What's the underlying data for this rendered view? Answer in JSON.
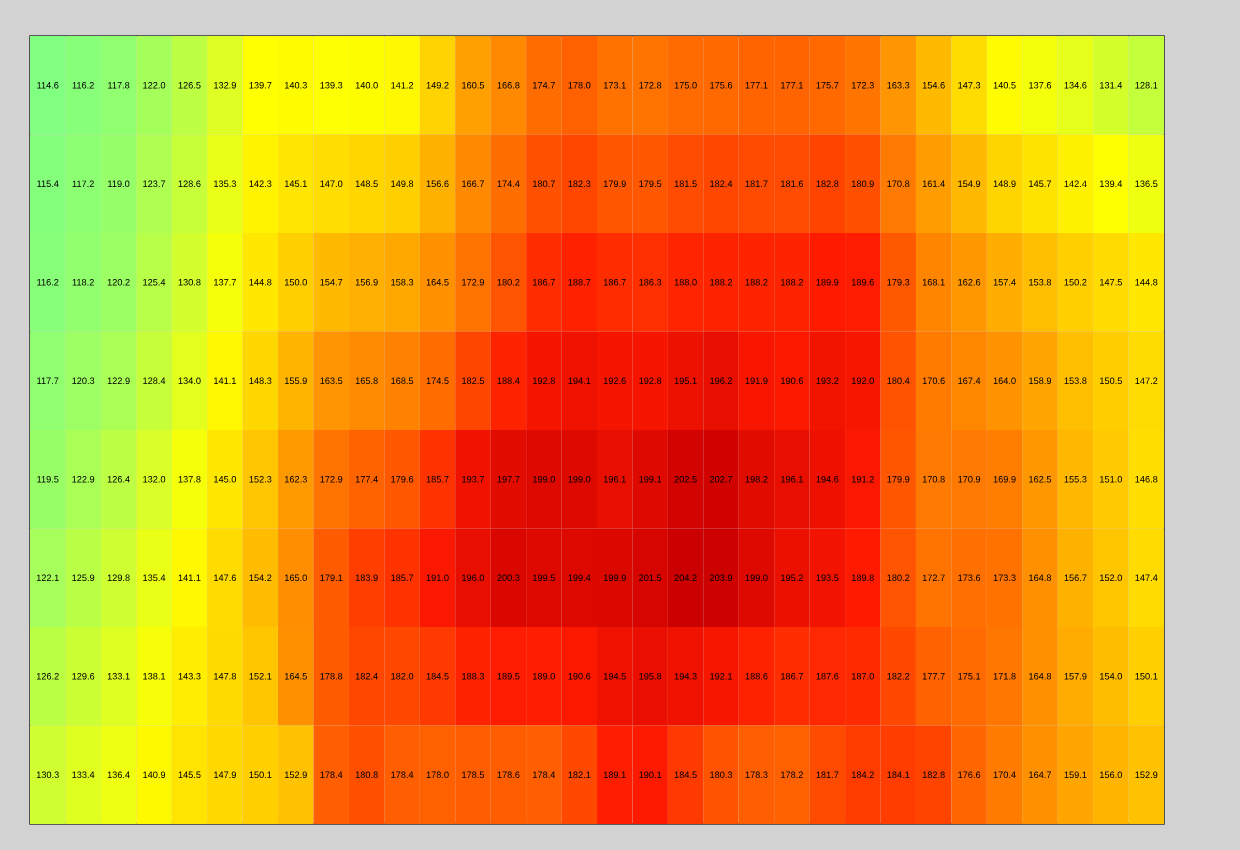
{
  "chart_data": {
    "type": "heatmap",
    "data_labels": true,
    "categories": [
      null,
      null,
      null,
      null,
      null,
      null,
      null,
      null,
      null,
      null,
      null,
      null,
      null,
      null,
      null,
      null,
      null,
      null,
      null,
      null,
      null,
      null,
      null,
      null,
      null,
      null,
      null,
      null,
      null,
      null,
      null,
      null
    ],
    "y_categories": [
      null,
      null,
      null,
      null,
      null,
      null,
      null,
      null
    ],
    "cells": [
      [
        114.6,
        116.2,
        117.8,
        122.0,
        126.5,
        132.9,
        139.7,
        140.3,
        139.3,
        140.0,
        141.2,
        149.2,
        160.5,
        166.8,
        174.7,
        178.0,
        173.1,
        172.8,
        175.0,
        175.6,
        177.1,
        177.1,
        175.7,
        172.3,
        163.3,
        154.6,
        147.3,
        140.5,
        137.6,
        134.6,
        131.4,
        128.1
      ],
      [
        115.4,
        117.2,
        119.0,
        123.7,
        128.6,
        135.3,
        142.3,
        145.1,
        147.0,
        148.5,
        149.8,
        156.6,
        166.7,
        174.4,
        180.7,
        182.3,
        179.9,
        179.5,
        181.5,
        182.4,
        181.7,
        181.6,
        182.8,
        180.9,
        170.8,
        161.4,
        154.9,
        148.9,
        145.7,
        142.4,
        139.4,
        136.5
      ],
      [
        116.2,
        118.2,
        120.2,
        125.4,
        130.8,
        137.7,
        144.8,
        150.0,
        154.7,
        156.9,
        158.3,
        164.5,
        172.9,
        180.2,
        186.7,
        188.7,
        186.7,
        186.3,
        188.0,
        188.2,
        188.2,
        188.2,
        189.9,
        189.6,
        179.3,
        168.1,
        162.6,
        157.4,
        153.8,
        150.2,
        147.5,
        144.8
      ],
      [
        117.7,
        120.3,
        122.9,
        128.4,
        134.0,
        141.1,
        148.3,
        155.9,
        163.5,
        165.8,
        168.5,
        174.5,
        182.5,
        188.4,
        192.8,
        194.1,
        192.6,
        192.8,
        195.1,
        196.2,
        191.9,
        190.6,
        193.2,
        192.0,
        180.4,
        170.6,
        167.4,
        164.0,
        158.9,
        153.8,
        150.5,
        147.2
      ],
      [
        119.5,
        122.9,
        126.4,
        132.0,
        137.8,
        145.0,
        152.3,
        162.3,
        172.9,
        177.4,
        179.6,
        185.7,
        193.7,
        197.7,
        199.0,
        199.0,
        196.1,
        199.1,
        202.5,
        202.7,
        198.2,
        196.1,
        194.6,
        191.2,
        179.9,
        170.8,
        170.9,
        169.9,
        162.5,
        155.3,
        151.0,
        146.8
      ],
      [
        122.1,
        125.9,
        129.8,
        135.4,
        141.1,
        147.6,
        154.2,
        165.0,
        179.1,
        183.9,
        185.7,
        191.0,
        196.0,
        200.3,
        199.5,
        199.4,
        199.9,
        201.5,
        204.2,
        203.9,
        199.0,
        195.2,
        193.5,
        189.8,
        180.2,
        172.7,
        173.6,
        173.3,
        164.8,
        156.7,
        152.0,
        147.4
      ],
      [
        126.2,
        129.6,
        133.1,
        138.1,
        143.3,
        147.8,
        152.1,
        164.5,
        178.8,
        182.4,
        182.0,
        184.5,
        188.3,
        189.5,
        189.0,
        190.6,
        194.5,
        195.8,
        194.3,
        192.1,
        188.6,
        186.7,
        187.6,
        187.0,
        182.2,
        177.7,
        175.1,
        171.8,
        164.8,
        157.9,
        154.0,
        150.1
      ],
      [
        130.3,
        133.4,
        136.4,
        140.9,
        145.5,
        147.9,
        150.1,
        152.9,
        178.4,
        180.8,
        178.4,
        178.0,
        178.5,
        178.6,
        178.4,
        182.1,
        189.1,
        190.1,
        184.5,
        180.3,
        178.3,
        178.2,
        181.7,
        184.2,
        184.1,
        182.8,
        176.6,
        170.4,
        164.7,
        159.1,
        156.0,
        152.9
      ]
    ],
    "cell_labels": [
      [
        "114.6",
        "116.2",
        "117.8",
        "122.0",
        "126.5",
        "132.9",
        "139.7",
        "140.3",
        "139.3",
        "140.0",
        "141.2",
        "149.2",
        "160.5",
        "166.8",
        "174.7",
        "178.0",
        "173.1",
        "172.8",
        "175.0",
        "175.6",
        "177.1",
        "177.1",
        "175.7",
        "172.3",
        "163.3",
        "154.6",
        "147.3",
        "140.5",
        "137.6",
        "134.6",
        "131.4",
        "128.1"
      ],
      [
        "115.4",
        "117.2",
        "119.0",
        "123.7",
        "128.6",
        "135.3",
        "142.3",
        "145.1",
        "147.0",
        "148.5",
        "149.8",
        "156.6",
        "166.7",
        "174.4",
        "180.7",
        "182.3",
        "179.9",
        "179.5",
        "181.5",
        "182.4",
        "181.7",
        "181.6",
        "182.8",
        "180.9",
        "170.8",
        "161.4",
        "154.9",
        "148.9",
        "145.7",
        "142.4",
        "139.4",
        "136.5"
      ],
      [
        "116.2",
        "118.2",
        "120.2",
        "125.4",
        "130.8",
        "137.7",
        "144.8",
        "150.0",
        "154.7",
        "156.9",
        "158.3",
        "164.5",
        "172.9",
        "180.2",
        "186.7",
        "188.7",
        "186.7",
        "186.3",
        "188.0",
        "188.2",
        "188.2",
        "188.2",
        "189.9",
        "189.6",
        "179.3",
        "168.1",
        "162.6",
        "157.4",
        "153.8",
        "150.2",
        "147.5",
        "144.8"
      ],
      [
        "117.7",
        "120.3",
        "122.9",
        "128.4",
        "134.0",
        "141.1",
        "148.3",
        "155.9",
        "163.5",
        "165.8",
        "168.5",
        "174.5",
        "182.5",
        "188.4",
        "192.8",
        "194.1",
        "192.6",
        "192.8",
        "195.1",
        "196.2",
        "191.9",
        "190.6",
        "193.2",
        "192.0",
        "180.4",
        "170.6",
        "167.4",
        "164.0",
        "158.9",
        "153.8",
        "150.5",
        "147.2"
      ],
      [
        "119.5",
        "122.9",
        "126.4",
        "132.0",
        "137.8",
        "145.0",
        "152.3",
        "162.3",
        "172.9",
        "177.4",
        "179.6",
        "185.7",
        "193.7",
        "197.7",
        "199.0",
        "199.0",
        "196.1",
        "199.1",
        "202.5",
        "202.7",
        "198.2",
        "196.1",
        "194.6",
        "191.2",
        "179.9",
        "170.8",
        "170.9",
        "169.9",
        "162.5",
        "155.3",
        "151.0",
        "146.8"
      ],
      [
        "122.1",
        "125.9",
        "129.8",
        "135.4",
        "141.1",
        "147.6",
        "154.2",
        "165.0",
        "179.1",
        "183.9",
        "185.7",
        "191.0",
        "196.0",
        "200.3",
        "199.5",
        "199.4",
        "199.9",
        "201.5",
        "204.2",
        "203.9",
        "199.0",
        "195.2",
        "193.5",
        "189.8",
        "180.2",
        "172.7",
        "173.6",
        "173.3",
        "164.8",
        "156.7",
        "152.0",
        "147.4"
      ],
      [
        "126.2",
        "129.6",
        "133.1",
        "138.1",
        "143.3",
        "147.8",
        "152.1",
        "164.5",
        "178.8",
        "182.4",
        "182.0",
        "184.5",
        "188.3",
        "189.5",
        "189.0",
        "190.6",
        "194.5",
        "195.8",
        "194.3",
        "192.1",
        "188.6",
        "186.7",
        "187.6",
        "187.0",
        "182.2",
        "177.7",
        "175.1",
        "171.8",
        "164.8",
        "157.9",
        "154.0",
        "150.1"
      ],
      [
        "130.3",
        "133.4",
        "136.4",
        "140.9",
        "145.5",
        "147.9",
        "150.1",
        "152.9",
        "178.4",
        "180.8",
        "178.4",
        "178.0",
        "178.5",
        "178.6",
        "178.4",
        "182.1",
        "189.1",
        "190.1",
        "184.5",
        "180.3",
        "178.3",
        "178.2",
        "181.7",
        "184.2",
        "184.1",
        "182.8",
        "176.6",
        "170.4",
        "164.7",
        "159.1",
        "156.0",
        "152.9"
      ]
    ]
  }
}
